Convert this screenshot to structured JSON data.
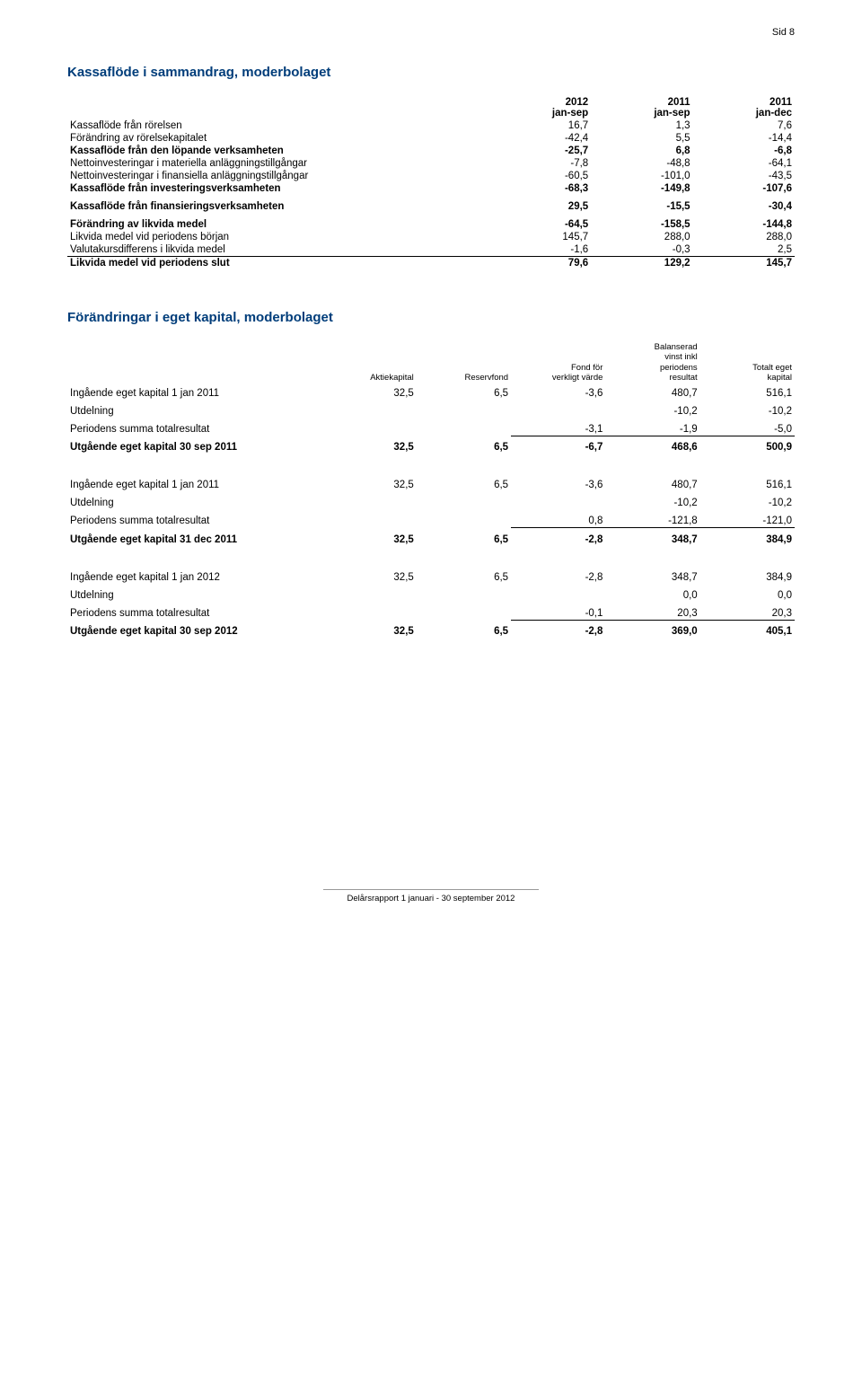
{
  "page_number": "Sid 8",
  "colors": {
    "heading": "#003d7a",
    "text": "#000000",
    "background": "#ffffff"
  },
  "cashflow": {
    "title": "Kassaflöde i sammandrag, moderbolaget",
    "headers": [
      "2012\njan-sep",
      "2011\njan-sep",
      "2011\njan-dec"
    ],
    "rows": [
      {
        "label": "Kassaflöde från rörelsen",
        "v": [
          "16,7",
          "1,3",
          "7,6"
        ],
        "bold": false
      },
      {
        "label": "Förändring av rörelsekapitalet",
        "v": [
          "-42,4",
          "5,5",
          "-14,4"
        ],
        "bold": false
      },
      {
        "label": "Kassaflöde från den löpande verksamheten",
        "v": [
          "-25,7",
          "6,8",
          "-6,8"
        ],
        "bold": true
      },
      {
        "label": "Nettoinvesteringar i materiella anläggningstillgångar",
        "v": [
          "-7,8",
          "-48,8",
          "-64,1"
        ],
        "bold": false
      },
      {
        "label": "Nettoinvesteringar i finansiella anläggningstillgångar",
        "v": [
          "-60,5",
          "-101,0",
          "-43,5"
        ],
        "bold": false
      },
      {
        "label": "Kassaflöde från investeringsverksamheten",
        "v": [
          "-68,3",
          "-149,8",
          "-107,6"
        ],
        "bold": true
      }
    ],
    "financing_row": {
      "label": "Kassaflöde från finansieringsverksamheten",
      "v": [
        "29,5",
        "-15,5",
        "-30,4"
      ],
      "bold": true
    },
    "footer_rows": [
      {
        "label": "Förändring av likvida medel",
        "v": [
          "-64,5",
          "-158,5",
          "-144,8"
        ],
        "bold": true
      },
      {
        "label": "Likvida medel vid periodens början",
        "v": [
          "145,7",
          "288,0",
          "288,0"
        ],
        "bold": false
      },
      {
        "label": "Valutakursdifferens i likvida medel",
        "v": [
          "-1,6",
          "-0,3",
          "2,5"
        ],
        "bold": false,
        "underline": true
      },
      {
        "label": "Likvida medel vid periodens slut",
        "v": [
          "79,6",
          "129,2",
          "145,7"
        ],
        "bold": true
      }
    ]
  },
  "equity": {
    "title": "Förändringar i eget kapital, moderbolaget",
    "col_headers": [
      "Aktiekapital",
      "Reservfond",
      "Fond för\nverkligt värde",
      "Balanserad\nvinst inkl\nperiodens\nresultat",
      "Totalt eget\nkapital"
    ],
    "blocks": [
      {
        "rows": [
          {
            "label": "Ingående eget kapital 1 jan 2011",
            "v": [
              "32,5",
              "6,5",
              "-3,6",
              "480,7",
              "516,1"
            ]
          },
          {
            "label": "Utdelning",
            "v": [
              "",
              "",
              "",
              "-10,2",
              "-10,2"
            ]
          },
          {
            "label": "Periodens summa totalresultat",
            "v": [
              "",
              "",
              "-3,1",
              "-1,9",
              "-5,0"
            ],
            "sumline": true
          }
        ],
        "total": {
          "label": "Utgående eget kapital 30 sep 2011",
          "v": [
            "32,5",
            "6,5",
            "-6,7",
            "468,6",
            "500,9"
          ]
        }
      },
      {
        "rows": [
          {
            "label": "Ingående eget kapital 1 jan 2011",
            "v": [
              "32,5",
              "6,5",
              "-3,6",
              "480,7",
              "516,1"
            ]
          },
          {
            "label": "Utdelning",
            "v": [
              "",
              "",
              "",
              "-10,2",
              "-10,2"
            ]
          },
          {
            "label": "Periodens summa totalresultat",
            "v": [
              "",
              "",
              "0,8",
              "-121,8",
              "-121,0"
            ],
            "sumline": true
          }
        ],
        "total": {
          "label": "Utgående eget kapital 31 dec 2011",
          "v": [
            "32,5",
            "6,5",
            "-2,8",
            "348,7",
            "384,9"
          ]
        }
      },
      {
        "rows": [
          {
            "label": "Ingående eget kapital 1 jan 2012",
            "v": [
              "32,5",
              "6,5",
              "-2,8",
              "348,7",
              "384,9"
            ]
          },
          {
            "label": "Utdelning",
            "v": [
              "",
              "",
              "",
              "0,0",
              "0,0"
            ]
          },
          {
            "label": "Periodens summa totalresultat",
            "v": [
              "",
              "",
              "-0,1",
              "20,3",
              "20,3"
            ],
            "sumline": true
          }
        ],
        "total": {
          "label": "Utgående eget kapital 30 sep 2012",
          "v": [
            "32,5",
            "6,5",
            "-2,8",
            "369,0",
            "405,1"
          ]
        }
      }
    ]
  },
  "footer": "Delårsrapport 1 januari - 30 september 2012"
}
